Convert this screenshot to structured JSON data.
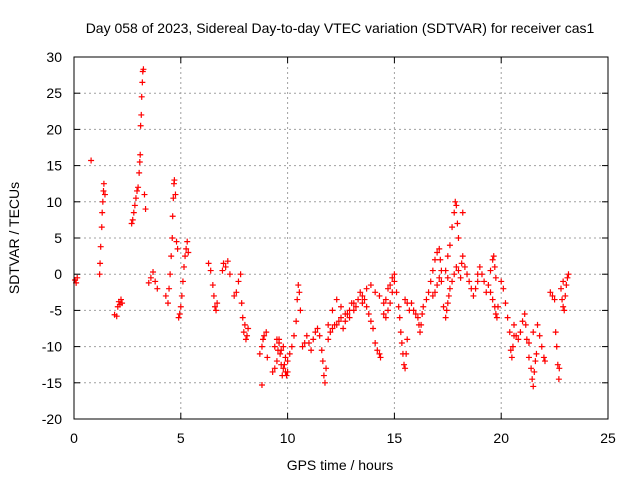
{
  "chart_data": {
    "type": "scatter",
    "title": "Day 058 of 2023, Sidereal Day-to-day VTEC variation (SDTVAR) for receiver cas1",
    "xlabel": "GPS time / hours",
    "ylabel": "SDTVAR / TECUs",
    "xlim": [
      0,
      25
    ],
    "ylim": [
      -20,
      30
    ],
    "xticks": [
      0,
      5,
      10,
      15,
      20,
      25
    ],
    "yticks": [
      -20,
      -15,
      -10,
      -5,
      0,
      5,
      10,
      15,
      20,
      25,
      30
    ],
    "grid": true,
    "marker": "+",
    "color": "#ff0000",
    "series": [
      {
        "name": "SDTVAR",
        "points": [
          [
            0.05,
            -0.8
          ],
          [
            0.1,
            -1.2
          ],
          [
            0.15,
            -0.5
          ],
          [
            0.8,
            15.7
          ],
          [
            1.2,
            0.0
          ],
          [
            1.22,
            1.5
          ],
          [
            1.25,
            3.8
          ],
          [
            1.3,
            6.5
          ],
          [
            1.32,
            8.5
          ],
          [
            1.35,
            10.0
          ],
          [
            1.38,
            11.5
          ],
          [
            1.4,
            12.5
          ],
          [
            1.45,
            11.0
          ],
          [
            1.9,
            -5.6
          ],
          [
            2.0,
            -5.8
          ],
          [
            2.05,
            -4.5
          ],
          [
            2.1,
            -3.8
          ],
          [
            2.15,
            -4.2
          ],
          [
            2.2,
            -3.5
          ],
          [
            2.25,
            -4.0
          ],
          [
            2.7,
            7.0
          ],
          [
            2.75,
            7.5
          ],
          [
            2.8,
            8.5
          ],
          [
            2.85,
            9.5
          ],
          [
            2.9,
            10.5
          ],
          [
            2.95,
            11.5
          ],
          [
            3.0,
            12.0
          ],
          [
            3.05,
            14.0
          ],
          [
            3.08,
            15.5
          ],
          [
            3.1,
            16.5
          ],
          [
            3.12,
            20.5
          ],
          [
            3.15,
            22.0
          ],
          [
            3.17,
            24.5
          ],
          [
            3.2,
            26.5
          ],
          [
            3.22,
            28.0
          ],
          [
            3.25,
            28.3
          ],
          [
            3.3,
            11.0
          ],
          [
            3.35,
            9.0
          ],
          [
            3.5,
            -1.2
          ],
          [
            3.6,
            -0.5
          ],
          [
            3.7,
            0.3
          ],
          [
            3.8,
            -1.0
          ],
          [
            3.9,
            -2.0
          ],
          [
            4.3,
            -3.0
          ],
          [
            4.4,
            -4.0
          ],
          [
            4.45,
            -2.0
          ],
          [
            4.5,
            0.0
          ],
          [
            4.55,
            2.5
          ],
          [
            4.6,
            5.0
          ],
          [
            4.62,
            8.0
          ],
          [
            4.65,
            10.5
          ],
          [
            4.68,
            12.5
          ],
          [
            4.7,
            13.0
          ],
          [
            4.75,
            11.0
          ],
          [
            4.8,
            4.5
          ],
          [
            4.85,
            3.5
          ],
          [
            4.9,
            -6.0
          ],
          [
            4.95,
            -5.5
          ],
          [
            5.0,
            -4.5
          ],
          [
            5.05,
            -3.0
          ],
          [
            5.1,
            -1.0
          ],
          [
            5.15,
            1.0
          ],
          [
            5.2,
            2.5
          ],
          [
            5.25,
            3.5
          ],
          [
            5.3,
            4.5
          ],
          [
            5.35,
            3.0
          ],
          [
            6.3,
            1.5
          ],
          [
            6.4,
            0.5
          ],
          [
            6.5,
            -1.5
          ],
          [
            6.55,
            -3.0
          ],
          [
            6.6,
            -4.5
          ],
          [
            6.65,
            -5.0
          ],
          [
            6.7,
            -4.0
          ],
          [
            6.95,
            0.5
          ],
          [
            7.0,
            1.5
          ],
          [
            7.1,
            1.0
          ],
          [
            7.2,
            1.8
          ],
          [
            7.3,
            0.0
          ],
          [
            7.5,
            -3.0
          ],
          [
            7.6,
            -2.5
          ],
          [
            7.7,
            -1.0
          ],
          [
            7.8,
            0.0
          ],
          [
            7.85,
            -4.0
          ],
          [
            7.9,
            -6.0
          ],
          [
            7.95,
            -8.0
          ],
          [
            8.0,
            -7.0
          ],
          [
            8.05,
            -9.0
          ],
          [
            8.1,
            -8.5
          ],
          [
            8.15,
            -7.5
          ],
          [
            8.7,
            -11.0
          ],
          [
            8.8,
            -10.0
          ],
          [
            8.85,
            -9.0
          ],
          [
            8.9,
            -8.5
          ],
          [
            9.0,
            -8.0
          ],
          [
            9.05,
            -11.5
          ],
          [
            8.8,
            -15.3
          ],
          [
            9.3,
            -13.5
          ],
          [
            9.4,
            -13.0
          ],
          [
            9.5,
            -12.0
          ],
          [
            9.55,
            -10.5
          ],
          [
            9.6,
            -9.5
          ],
          [
            9.65,
            -11.0
          ],
          [
            9.7,
            -12.5
          ],
          [
            9.75,
            -14.0
          ],
          [
            9.8,
            -13.0
          ],
          [
            9.85,
            -12.5
          ],
          [
            9.9,
            -13.5
          ],
          [
            9.95,
            -14.0
          ],
          [
            10.0,
            -13.5
          ],
          [
            9.4,
            -10.0
          ],
          [
            9.5,
            -9.0
          ],
          [
            9.6,
            -9.0
          ],
          [
            9.7,
            -10.5
          ],
          [
            9.8,
            -10.0
          ],
          [
            9.9,
            -11.5
          ],
          [
            10.0,
            -12.0
          ],
          [
            10.1,
            -11.0
          ],
          [
            10.2,
            -10.0
          ],
          [
            10.3,
            -8.5
          ],
          [
            10.4,
            -6.5
          ],
          [
            10.45,
            -3.5
          ],
          [
            10.5,
            -1.5
          ],
          [
            10.55,
            -2.5
          ],
          [
            10.6,
            -5.0
          ],
          [
            10.7,
            -10.0
          ],
          [
            10.8,
            -9.5
          ],
          [
            10.9,
            -8.5
          ],
          [
            11.0,
            -9.5
          ],
          [
            11.1,
            -10.5
          ],
          [
            11.2,
            -9.0
          ],
          [
            11.3,
            -8.0
          ],
          [
            11.4,
            -7.5
          ],
          [
            11.5,
            -8.5
          ],
          [
            11.6,
            -10.5
          ],
          [
            11.65,
            -12.0
          ],
          [
            11.7,
            -14.0
          ],
          [
            11.75,
            -15.0
          ],
          [
            11.8,
            -13.0
          ],
          [
            11.9,
            -9.0
          ],
          [
            12.0,
            -8.0
          ],
          [
            12.1,
            -7.5
          ],
          [
            12.2,
            -7.0
          ],
          [
            12.3,
            -7.0
          ],
          [
            12.4,
            -6.5
          ],
          [
            12.5,
            -6.0
          ],
          [
            12.6,
            -7.5
          ],
          [
            12.7,
            -6.5
          ],
          [
            12.8,
            -5.5
          ],
          [
            12.9,
            -5.0
          ],
          [
            13.0,
            -4.0
          ],
          [
            13.1,
            -5.0
          ],
          [
            13.2,
            -4.5
          ],
          [
            11.9,
            -7.0
          ],
          [
            12.1,
            -5.0
          ],
          [
            12.3,
            -3.5
          ],
          [
            12.5,
            -4.5
          ],
          [
            12.7,
            -5.5
          ],
          [
            12.9,
            -6.0
          ],
          [
            13.1,
            -4.0
          ],
          [
            13.3,
            -3.5
          ],
          [
            13.4,
            -2.5
          ],
          [
            13.5,
            -3.0
          ],
          [
            13.6,
            -3.5
          ],
          [
            13.7,
            -4.5
          ],
          [
            13.8,
            -5.5
          ],
          [
            13.9,
            -6.5
          ],
          [
            14.0,
            -7.5
          ],
          [
            14.1,
            -9.5
          ],
          [
            14.2,
            -10.5
          ],
          [
            14.3,
            -11.0
          ],
          [
            14.35,
            -11.5
          ],
          [
            13.5,
            -4.0
          ],
          [
            13.7,
            -2.0
          ],
          [
            13.9,
            -1.5
          ],
          [
            14.1,
            -2.5
          ],
          [
            14.3,
            -3.0
          ],
          [
            14.5,
            -4.0
          ],
          [
            14.6,
            -3.5
          ],
          [
            14.7,
            -2.0
          ],
          [
            14.8,
            -1.5
          ],
          [
            14.9,
            -0.5
          ],
          [
            15.0,
            -1.0
          ],
          [
            14.5,
            -5.5
          ],
          [
            14.6,
            -6.0
          ],
          [
            14.7,
            -5.0
          ],
          [
            14.8,
            -4.0
          ],
          [
            14.9,
            -2.5
          ],
          [
            15.0,
            0.0
          ],
          [
            15.1,
            -2.5
          ],
          [
            15.2,
            -4.5
          ],
          [
            15.25,
            -6.0
          ],
          [
            15.3,
            -8.0
          ],
          [
            15.35,
            -9.5
          ],
          [
            15.4,
            -11.0
          ],
          [
            15.45,
            -12.5
          ],
          [
            15.5,
            -13.0
          ],
          [
            15.55,
            -11.0
          ],
          [
            15.6,
            -9.0
          ],
          [
            15.5,
            -3.5
          ],
          [
            15.6,
            -4.0
          ],
          [
            15.7,
            -5.0
          ],
          [
            15.8,
            -4.0
          ],
          [
            15.9,
            -5.0
          ],
          [
            16.0,
            -5.5
          ],
          [
            16.1,
            -6.0
          ],
          [
            16.15,
            -7.0
          ],
          [
            16.2,
            -8.0
          ],
          [
            16.25,
            -7.0
          ],
          [
            16.3,
            -5.5
          ],
          [
            16.35,
            -4.5
          ],
          [
            16.5,
            -3.5
          ],
          [
            16.6,
            -2.5
          ],
          [
            16.7,
            -1.0
          ],
          [
            16.8,
            0.5
          ],
          [
            16.9,
            2.0
          ],
          [
            17.0,
            3.0
          ],
          [
            17.1,
            3.5
          ],
          [
            17.15,
            2.0
          ],
          [
            17.2,
            0.5
          ],
          [
            16.8,
            -3.0
          ],
          [
            16.9,
            -2.5
          ],
          [
            17.0,
            -1.5
          ],
          [
            17.1,
            -0.5
          ],
          [
            17.2,
            -1.0
          ],
          [
            17.3,
            -4.5
          ],
          [
            17.4,
            -6.0
          ],
          [
            17.45,
            -5.0
          ],
          [
            17.5,
            -4.0
          ],
          [
            17.55,
            -3.0
          ],
          [
            17.4,
            0.5
          ],
          [
            17.5,
            -0.5
          ],
          [
            17.6,
            -2.0
          ],
          [
            17.7,
            -1.0
          ],
          [
            17.8,
            0.0
          ],
          [
            17.9,
            1.0
          ],
          [
            18.0,
            0.5
          ],
          [
            18.1,
            -0.5
          ],
          [
            18.15,
            1.5
          ],
          [
            18.2,
            2.5
          ],
          [
            17.5,
            2.5
          ],
          [
            17.6,
            4.0
          ],
          [
            17.7,
            6.5
          ],
          [
            17.8,
            8.5
          ],
          [
            17.85,
            10.0
          ],
          [
            17.9,
            9.5
          ],
          [
            17.95,
            7.0
          ],
          [
            18.0,
            5.0
          ],
          [
            18.2,
            8.5
          ],
          [
            18.3,
            1.0
          ],
          [
            18.4,
            0.0
          ],
          [
            18.5,
            -1.0
          ],
          [
            18.6,
            -2.0
          ],
          [
            18.7,
            -3.0
          ],
          [
            18.8,
            -2.0
          ],
          [
            18.9,
            -1.0
          ],
          [
            18.9,
            0.0
          ],
          [
            19.0,
            1.0
          ],
          [
            19.1,
            0.0
          ],
          [
            19.2,
            -1.0
          ],
          [
            19.3,
            -2.5
          ],
          [
            19.4,
            -1.5
          ],
          [
            19.5,
            0.5
          ],
          [
            19.6,
            2.0
          ],
          [
            19.65,
            2.5
          ],
          [
            19.7,
            1.0
          ],
          [
            19.75,
            -0.5
          ],
          [
            19.5,
            -2.5
          ],
          [
            19.6,
            -3.5
          ],
          [
            19.7,
            -4.5
          ],
          [
            19.75,
            -5.5
          ],
          [
            19.8,
            -6.0
          ],
          [
            19.85,
            -4.5
          ],
          [
            20.0,
            -1.0
          ],
          [
            20.1,
            -2.0
          ],
          [
            20.2,
            -4.0
          ],
          [
            20.3,
            -6.0
          ],
          [
            20.4,
            -8.0
          ],
          [
            20.45,
            -10.5
          ],
          [
            20.5,
            -11.5
          ],
          [
            20.55,
            -10.0
          ],
          [
            20.6,
            -8.5
          ],
          [
            20.6,
            -7.0
          ],
          [
            20.7,
            -8.5
          ],
          [
            20.8,
            -9.0
          ],
          [
            20.9,
            -8.0
          ],
          [
            21.0,
            -6.5
          ],
          [
            21.1,
            -5.5
          ],
          [
            21.15,
            -7.0
          ],
          [
            21.2,
            -9.0
          ],
          [
            21.3,
            -11.5
          ],
          [
            21.4,
            -13.0
          ],
          [
            21.45,
            -14.5
          ],
          [
            21.5,
            -15.5
          ],
          [
            21.55,
            -13.5
          ],
          [
            21.6,
            -12.0
          ],
          [
            21.65,
            -11.0
          ],
          [
            21.3,
            -9.5
          ],
          [
            21.5,
            -8.0
          ],
          [
            21.7,
            -7.0
          ],
          [
            21.8,
            -8.5
          ],
          [
            21.9,
            -10.0
          ],
          [
            22.0,
            -11.5
          ],
          [
            22.05,
            -12.0
          ],
          [
            22.3,
            -2.5
          ],
          [
            22.4,
            -3.0
          ],
          [
            22.5,
            -3.5
          ],
          [
            22.55,
            -8.0
          ],
          [
            22.6,
            -10.0
          ],
          [
            22.65,
            -12.5
          ],
          [
            22.7,
            -14.5
          ],
          [
            22.72,
            -13.0
          ],
          [
            22.8,
            -2.0
          ],
          [
            22.85,
            -3.5
          ],
          [
            22.9,
            -4.5
          ],
          [
            22.95,
            -5.0
          ],
          [
            23.0,
            -3.0
          ],
          [
            23.05,
            -1.5
          ],
          [
            23.1,
            -0.5
          ],
          [
            23.15,
            0.0
          ],
          [
            22.9,
            -1.0
          ]
        ]
      }
    ]
  }
}
